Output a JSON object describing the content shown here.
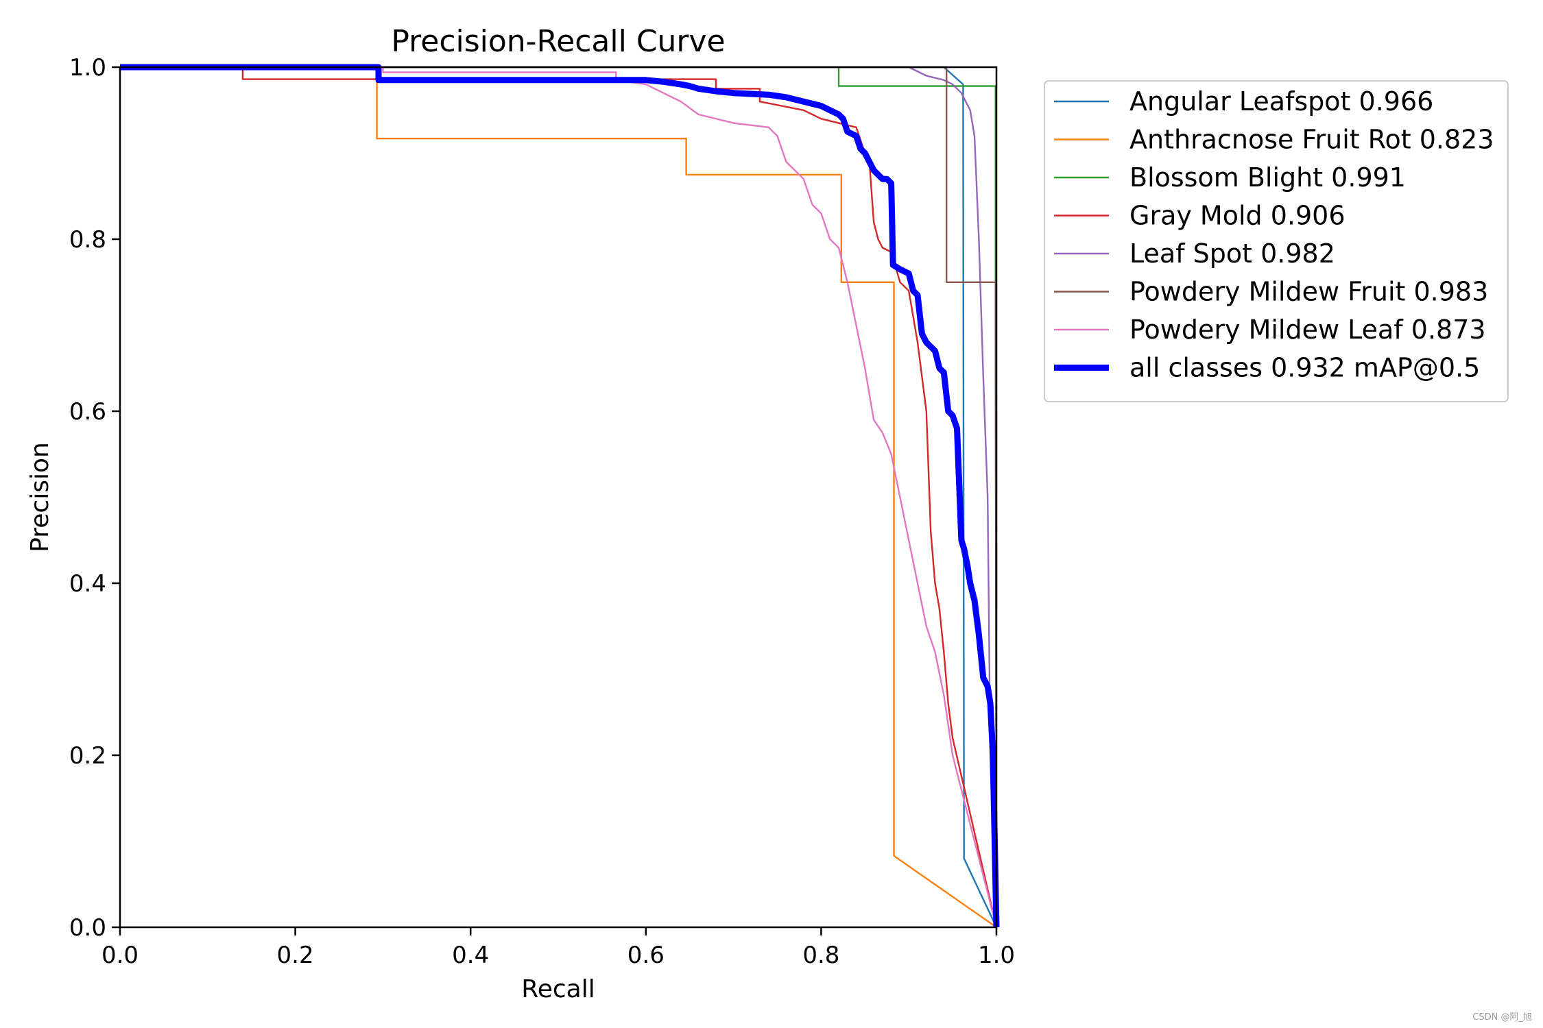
{
  "chart_data": {
    "type": "line",
    "title": "Precision-Recall Curve",
    "xlabel": "Recall",
    "ylabel": "Precision",
    "xlim": [
      0,
      1
    ],
    "ylim": [
      0,
      1
    ],
    "xticks": [
      "0.0",
      "0.2",
      "0.4",
      "0.6",
      "0.8",
      "1.0"
    ],
    "yticks": [
      "0.0",
      "0.2",
      "0.4",
      "0.6",
      "0.8",
      "1.0"
    ],
    "grid": false,
    "legend_position": "outside-top-right",
    "series": [
      {
        "name": "Angular Leafspot 0.966",
        "color": "#1f77b4",
        "style": "thin",
        "x": [
          0,
          0.94,
          0.962,
          0.962,
          0.963,
          1.0
        ],
        "y": [
          1.0,
          1.0,
          0.98,
          0.98,
          0.08,
          0.0
        ]
      },
      {
        "name": "Anthracnose Fruit Rot 0.823",
        "color": "#ff7f0e",
        "style": "thin",
        "x": [
          0,
          0.293,
          0.293,
          0.646,
          0.646,
          0.823,
          0.823,
          0.883,
          0.883,
          1.0
        ],
        "y": [
          1.0,
          1.0,
          0.917,
          0.917,
          0.875,
          0.875,
          0.75,
          0.75,
          0.083,
          0.0
        ]
      },
      {
        "name": "Blossom Blight 0.991",
        "color": "#2ca02c",
        "style": "thin",
        "x": [
          0,
          0.82,
          0.82,
          0.999,
          0.999,
          1.0
        ],
        "y": [
          1.0,
          1.0,
          0.978,
          0.978,
          0.75,
          0.0
        ]
      },
      {
        "name": "Gray Mold 0.906",
        "color": "#d62728",
        "style": "thin",
        "x": [
          0,
          0.14,
          0.14,
          0.6,
          0.68,
          0.68,
          0.73,
          0.73,
          0.78,
          0.8,
          0.82,
          0.84,
          0.85,
          0.855,
          0.86,
          0.865,
          0.87,
          0.88,
          0.89,
          0.9,
          0.91,
          0.92,
          0.925,
          0.93,
          0.935,
          0.94,
          0.945,
          0.95,
          1.0
        ],
        "y": [
          1.0,
          1.0,
          0.986,
          0.986,
          0.986,
          0.975,
          0.975,
          0.96,
          0.95,
          0.94,
          0.935,
          0.93,
          0.9,
          0.89,
          0.82,
          0.8,
          0.79,
          0.785,
          0.75,
          0.74,
          0.68,
          0.6,
          0.46,
          0.4,
          0.37,
          0.32,
          0.26,
          0.22,
          0.0
        ]
      },
      {
        "name": "Leaf Spot 0.982",
        "color": "#9467bd",
        "style": "thin",
        "x": [
          0,
          0.9,
          0.92,
          0.94,
          0.95,
          0.96,
          0.97,
          0.975,
          0.98,
          0.985,
          0.99,
          0.993,
          0.996,
          1.0
        ],
        "y": [
          1.0,
          1.0,
          0.99,
          0.985,
          0.98,
          0.97,
          0.95,
          0.92,
          0.8,
          0.64,
          0.5,
          0.2,
          0.1,
          0.0
        ]
      },
      {
        "name": "Powdery Mildew Fruit 0.983",
        "color": "#8c564b",
        "style": "thin",
        "x": [
          0,
          0.943,
          0.943,
          0.999,
          0.999,
          1.0
        ],
        "y": [
          1.0,
          1.0,
          0.75,
          0.75,
          0.7,
          0.0
        ]
      },
      {
        "name": "Powdery Mildew Leaf 0.873",
        "color": "#e377c2",
        "style": "thin",
        "x": [
          0,
          0.3,
          0.3,
          0.566,
          0.566,
          0.6,
          0.62,
          0.64,
          0.66,
          0.7,
          0.74,
          0.75,
          0.76,
          0.77,
          0.78,
          0.79,
          0.8,
          0.81,
          0.82,
          0.83,
          0.84,
          0.85,
          0.86,
          0.87,
          0.88,
          0.89,
          0.9,
          0.91,
          0.92,
          0.93,
          0.94,
          0.95,
          1.0
        ],
        "y": [
          1.0,
          1.0,
          0.994,
          0.994,
          0.985,
          0.98,
          0.97,
          0.96,
          0.945,
          0.935,
          0.93,
          0.92,
          0.89,
          0.88,
          0.87,
          0.84,
          0.83,
          0.8,
          0.79,
          0.75,
          0.7,
          0.65,
          0.59,
          0.575,
          0.55,
          0.5,
          0.45,
          0.4,
          0.35,
          0.32,
          0.27,
          0.2,
          0.0
        ]
      },
      {
        "name": "all classes 0.932 mAP@0.5",
        "color": "#0000ff",
        "style": "thick",
        "x": [
          0,
          0.295,
          0.295,
          0.55,
          0.6,
          0.62,
          0.64,
          0.65,
          0.66,
          0.68,
          0.7,
          0.74,
          0.76,
          0.78,
          0.8,
          0.81,
          0.82,
          0.825,
          0.83,
          0.84,
          0.845,
          0.85,
          0.855,
          0.86,
          0.865,
          0.87,
          0.875,
          0.88,
          0.882,
          0.89,
          0.9,
          0.905,
          0.91,
          0.915,
          0.92,
          0.925,
          0.93,
          0.935,
          0.94,
          0.945,
          0.95,
          0.955,
          0.96,
          0.963,
          0.967,
          0.97,
          0.975,
          0.98,
          0.985,
          0.99,
          0.993,
          0.996,
          1.0
        ],
        "y": [
          1.0,
          1.0,
          0.985,
          0.985,
          0.985,
          0.983,
          0.98,
          0.978,
          0.975,
          0.972,
          0.97,
          0.968,
          0.965,
          0.96,
          0.955,
          0.95,
          0.945,
          0.94,
          0.925,
          0.92,
          0.905,
          0.9,
          0.89,
          0.88,
          0.875,
          0.87,
          0.87,
          0.865,
          0.77,
          0.765,
          0.76,
          0.74,
          0.735,
          0.69,
          0.68,
          0.675,
          0.67,
          0.65,
          0.645,
          0.6,
          0.595,
          0.58,
          0.45,
          0.44,
          0.42,
          0.4,
          0.38,
          0.34,
          0.29,
          0.28,
          0.26,
          0.2,
          0.0
        ]
      }
    ]
  },
  "watermark": "CSDN @阿_旭"
}
